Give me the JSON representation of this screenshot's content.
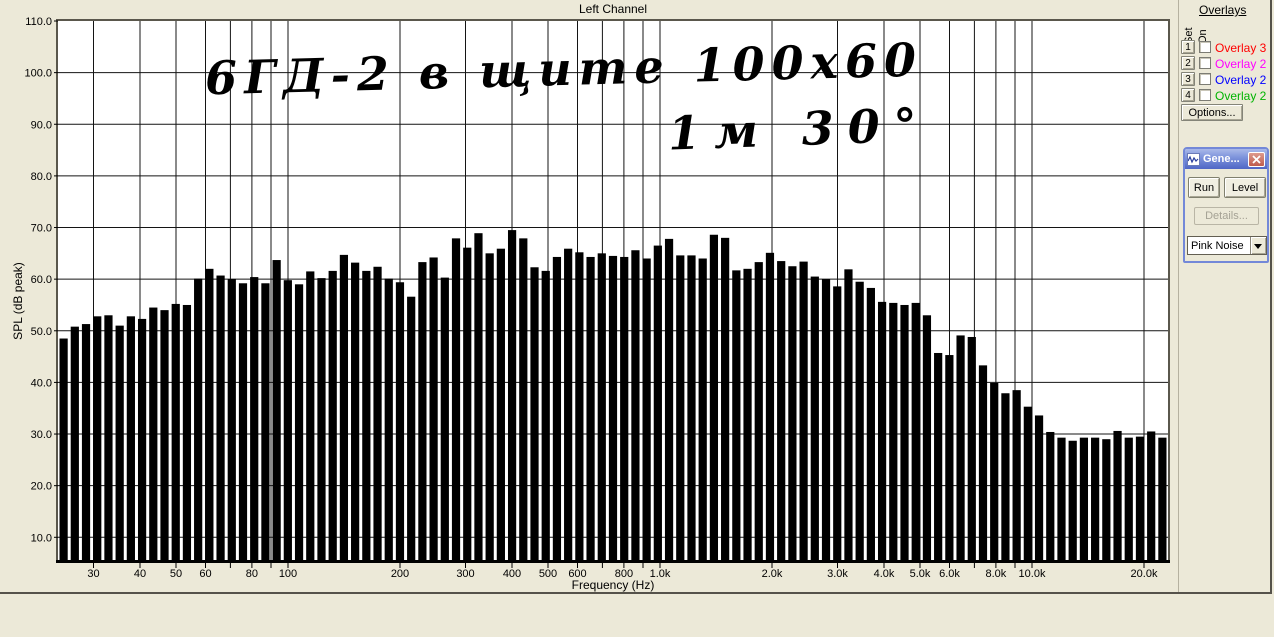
{
  "chart_data": {
    "type": "bar",
    "title": "Left Channel",
    "xlabel": "Frequency (Hz)",
    "ylabel": "SPL (dB peak)",
    "x_scale": "log",
    "x_range_hz": [
      24,
      23500
    ],
    "ylim": [
      5,
      110
    ],
    "grid": true,
    "plot_bg": "#ffffff",
    "grid_color": "#141414",
    "bar_color": "#000000",
    "bands_per_octave_approx": 10,
    "y_ticks": [
      {
        "v": 110,
        "label": "110.0"
      },
      {
        "v": 100,
        "label": "100.0"
      },
      {
        "v": 90,
        "label": "90.0"
      },
      {
        "v": 80,
        "label": "80.0"
      },
      {
        "v": 70,
        "label": "70.0"
      },
      {
        "v": 60,
        "label": "60.0"
      },
      {
        "v": 50,
        "label": "50.0"
      },
      {
        "v": 40,
        "label": "40.0"
      },
      {
        "v": 30,
        "label": "30.0"
      },
      {
        "v": 20,
        "label": "20.0"
      },
      {
        "v": 10,
        "label": "10.0"
      }
    ],
    "x_gridline_freqs": [
      30,
      40,
      50,
      60,
      70,
      80,
      90,
      100,
      200,
      300,
      400,
      500,
      600,
      700,
      800,
      900,
      1000,
      2000,
      3000,
      4000,
      5000,
      6000,
      7000,
      8000,
      9000,
      10000,
      20000
    ],
    "x_ticks": [
      {
        "f": 30,
        "label": "30"
      },
      {
        "f": 40,
        "label": "40"
      },
      {
        "f": 50,
        "label": "50"
      },
      {
        "f": 60,
        "label": "60"
      },
      {
        "f": 80,
        "label": "80"
      },
      {
        "f": 100,
        "label": "100"
      },
      {
        "f": 200,
        "label": "200"
      },
      {
        "f": 300,
        "label": "300"
      },
      {
        "f": 400,
        "label": "400"
      },
      {
        "f": 500,
        "label": "500"
      },
      {
        "f": 600,
        "label": "600"
      },
      {
        "f": 800,
        "label": "800"
      },
      {
        "f": 1000,
        "label": "1.0k"
      },
      {
        "f": 2000,
        "label": "2.0k"
      },
      {
        "f": 3000,
        "label": "3.0k"
      },
      {
        "f": 4000,
        "label": "4.0k"
      },
      {
        "f": 5000,
        "label": "5.0k"
      },
      {
        "f": 6000,
        "label": "6.0k"
      },
      {
        "f": 8000,
        "label": "8.0k"
      },
      {
        "f": 10000,
        "label": "10.0k"
      },
      {
        "f": 20000,
        "label": "20.0k"
      }
    ],
    "bars_db": [
      48.5,
      50.8,
      51.3,
      52.8,
      53.0,
      51.0,
      52.8,
      52.3,
      54.5,
      54.0,
      55.2,
      55.0,
      60.1,
      62.0,
      60.7,
      60.0,
      59.2,
      60.4,
      59.2,
      63.7,
      59.8,
      59.0,
      61.5,
      60.2,
      61.6,
      64.7,
      63.2,
      61.6,
      62.4,
      60.1,
      59.4,
      56.6,
      63.3,
      64.2,
      60.3,
      67.9,
      66.1,
      68.9,
      65.0,
      65.9,
      69.5,
      67.9,
      62.3,
      61.6,
      64.3,
      65.9,
      65.2,
      64.3,
      65.0,
      64.5,
      64.3,
      65.6,
      64.0,
      66.5,
      67.8,
      64.6,
      64.6,
      64.0,
      68.6,
      68.0,
      61.7,
      62.0,
      63.3,
      65.1,
      63.5,
      62.5,
      63.4,
      60.5,
      60.0,
      58.6,
      61.9,
      59.5,
      58.3,
      55.6,
      55.4,
      55.0,
      55.4,
      53.0,
      45.7,
      45.3,
      49.1,
      48.8,
      43.3,
      39.9,
      37.9,
      38.5,
      35.3,
      33.6,
      30.4,
      29.3,
      28.7,
      29.3,
      29.3,
      29.0,
      30.6,
      29.3,
      29.5,
      30.5,
      29.3
    ]
  },
  "annotation": {
    "line1": "6ГД-2 в щите 100х60",
    "line2": "1м 30°"
  },
  "overlays_panel": {
    "title": "Overlays",
    "col_set": "Set",
    "col_on": "On",
    "rows": [
      {
        "num": "1",
        "label": "Overlay 3",
        "color": "#ff0000"
      },
      {
        "num": "2",
        "label": "Overlay 2",
        "color": "#ff00ff"
      },
      {
        "num": "3",
        "label": "Overlay 2",
        "color": "#0000ff"
      },
      {
        "num": "4",
        "label": "Overlay 2",
        "color": "#00b400"
      }
    ],
    "options_label": "Options..."
  },
  "generator_window": {
    "title": "Gene...",
    "run_label": "Run",
    "level_label": "Level",
    "details_label": "Details...",
    "signal_select": "Pink Noise"
  },
  "theme": {
    "background": "#ece9d8",
    "titlebar_blue": "#5168c6",
    "close_red": "#bf5c4e"
  }
}
